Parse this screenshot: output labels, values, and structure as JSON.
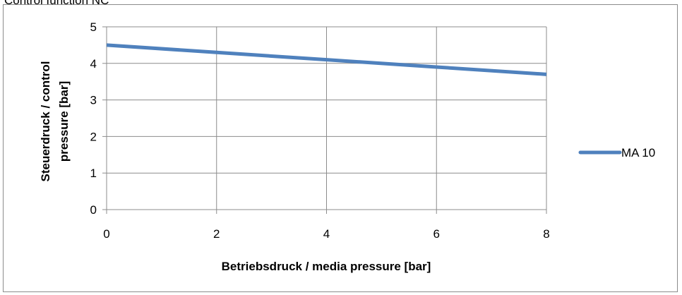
{
  "caption": "Control function NC",
  "chart_data": {
    "type": "line",
    "title": "",
    "xlabel": "Betriebsdruck / media pressure [bar]",
    "ylabel_lines": [
      "Steuerdruck  / control",
      "pressure [bar]"
    ],
    "xlim": [
      0,
      8
    ],
    "ylim": [
      0,
      5
    ],
    "x_ticks": [
      "0",
      "2",
      "4",
      "6",
      "8"
    ],
    "y_ticks": [
      "0",
      "1",
      "2",
      "3",
      "4",
      "5"
    ],
    "grid": true,
    "legend_position": "right",
    "series": [
      {
        "name": "MA 10",
        "color": "#4f81bd",
        "x": [
          0,
          2,
          4,
          6,
          8
        ],
        "y": [
          4.5,
          4.3,
          4.1,
          3.9,
          3.7
        ]
      }
    ]
  }
}
